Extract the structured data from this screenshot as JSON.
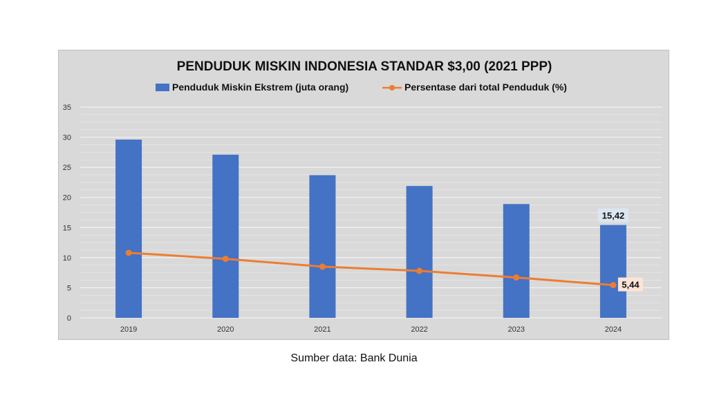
{
  "source_note": "Sumber data: Bank Dunia",
  "chart_data": {
    "type": "bar",
    "title": "PENDUDUK MISKIN INDONESIA STANDAR $3,00 (2021 PPP)",
    "xlabel": "",
    "ylabel": "",
    "categories": [
      "2019",
      "2020",
      "2021",
      "2022",
      "2023",
      "2024"
    ],
    "ylim": [
      0,
      35
    ],
    "yticks": [
      0,
      5,
      10,
      15,
      20,
      25,
      30,
      35
    ],
    "grid": true,
    "legend_position": "top",
    "series": [
      {
        "name": "Penduduk Miskin Ekstrem (juta orang)",
        "type": "bar",
        "color": "#4472c4",
        "values": [
          29.6,
          27.1,
          23.7,
          21.9,
          18.9,
          15.42
        ]
      },
      {
        "name": "Persentase dari total Penduduk (%)",
        "type": "line",
        "color": "#ed7d31",
        "values": [
          10.8,
          9.8,
          8.5,
          7.8,
          6.7,
          5.44
        ]
      }
    ],
    "data_labels": [
      {
        "series": 0,
        "index": 5,
        "text": "15,42"
      },
      {
        "series": 1,
        "index": 5,
        "text": "5,44"
      }
    ]
  }
}
